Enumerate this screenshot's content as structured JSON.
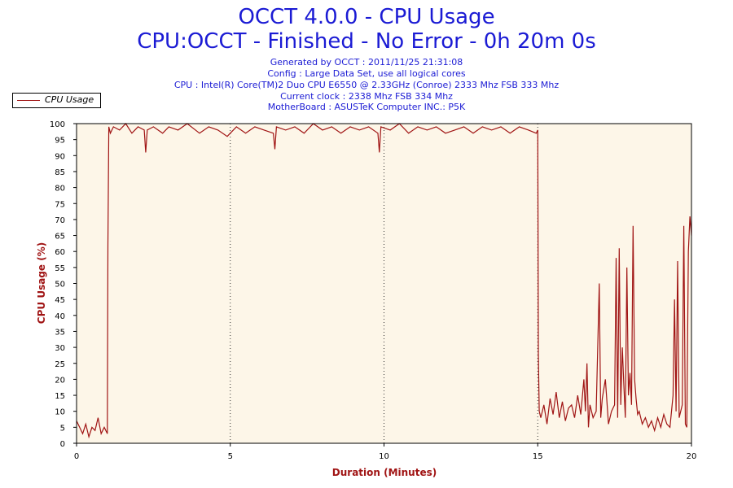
{
  "header": {
    "title_line1": "OCCT 4.0.0 - CPU Usage",
    "title_line2": "CPU:OCCT - Finished - No Error - 0h 20m 0s",
    "info": [
      "Generated by OCCT : 2011/11/25 21:31:08",
      "Config : Large Data Set, use all logical cores",
      "CPU : Intel(R) Core(TM)2 Duo CPU E6550 @ 2.33GHz (Conroe) 2333 Mhz FSB 333 Mhz",
      "Current clock : 2338 Mhz FSB 334 Mhz",
      "MotherBoard : ASUSTeK Computer INC.: P5K"
    ]
  },
  "legend": {
    "label": "CPU Usage"
  },
  "colors": {
    "title": "#1b1bd4",
    "series": "#a01414",
    "plot_bg": "#fdf6e8",
    "axis_label": "#a01414"
  },
  "chart_data": {
    "type": "line",
    "xlabel": "Duration (Minutes)",
    "ylabel": "CPU Usage (%)",
    "xlim": [
      0,
      20
    ],
    "ylim": [
      0,
      100
    ],
    "xticks": [
      0,
      5,
      10,
      15,
      20
    ],
    "yticks": [
      0,
      5,
      10,
      15,
      20,
      25,
      30,
      35,
      40,
      45,
      50,
      55,
      60,
      65,
      70,
      75,
      80,
      85,
      90,
      95,
      100
    ],
    "vgrid": [
      5,
      10,
      15
    ],
    "series": [
      {
        "name": "CPU Usage",
        "x": [
          0,
          0.1,
          0.2,
          0.3,
          0.4,
          0.5,
          0.6,
          0.7,
          0.8,
          0.9,
          1.0,
          1.02,
          1.05,
          1.1,
          1.2,
          1.4,
          1.6,
          1.8,
          2.0,
          2.2,
          2.25,
          2.3,
          2.5,
          2.8,
          3.0,
          3.3,
          3.6,
          4.0,
          4.3,
          4.6,
          4.9,
          5.2,
          5.5,
          5.8,
          6.1,
          6.4,
          6.45,
          6.5,
          6.8,
          7.1,
          7.4,
          7.7,
          8.0,
          8.3,
          8.6,
          8.9,
          9.2,
          9.5,
          9.8,
          9.85,
          9.9,
          10.2,
          10.5,
          10.8,
          11.1,
          11.4,
          11.7,
          12.0,
          12.3,
          12.6,
          12.9,
          13.2,
          13.5,
          13.8,
          14.1,
          14.4,
          14.7,
          14.95,
          15.0,
          15.02,
          15.05,
          15.1,
          15.2,
          15.3,
          15.4,
          15.5,
          15.6,
          15.7,
          15.8,
          15.9,
          16.0,
          16.1,
          16.2,
          16.3,
          16.4,
          16.5,
          16.55,
          16.6,
          16.65,
          16.7,
          16.8,
          16.9,
          17.0,
          17.05,
          17.1,
          17.2,
          17.3,
          17.4,
          17.5,
          17.55,
          17.6,
          17.65,
          17.7,
          17.75,
          17.8,
          17.85,
          17.9,
          17.95,
          18.0,
          18.05,
          18.1,
          18.15,
          18.2,
          18.25,
          18.3,
          18.4,
          18.5,
          18.6,
          18.7,
          18.8,
          18.9,
          19.0,
          19.1,
          19.2,
          19.3,
          19.4,
          19.45,
          19.5,
          19.55,
          19.6,
          19.7,
          19.75,
          19.8,
          19.85,
          19.9,
          19.95,
          20.0
        ],
        "values": [
          7,
          5,
          3,
          6,
          2,
          5,
          4,
          8,
          3,
          5,
          3,
          62,
          99,
          97,
          99,
          98,
          100,
          97,
          99,
          98,
          91,
          98,
          99,
          97,
          99,
          98,
          100,
          97,
          99,
          98,
          96,
          99,
          97,
          99,
          98,
          97,
          92,
          99,
          98,
          99,
          97,
          100,
          98,
          99,
          97,
          99,
          98,
          99,
          97,
          91,
          99,
          98,
          100,
          97,
          99,
          98,
          99,
          97,
          98,
          99,
          97,
          99,
          98,
          99,
          97,
          99,
          98,
          97,
          98,
          28,
          10,
          8,
          12,
          6,
          14,
          9,
          16,
          8,
          13,
          7,
          11,
          12,
          8,
          15,
          9,
          20,
          10,
          25,
          5,
          12,
          8,
          10,
          50,
          8,
          14,
          20,
          6,
          10,
          12,
          58,
          8,
          61,
          12,
          30,
          18,
          8,
          55,
          15,
          22,
          12,
          68,
          20,
          14,
          9,
          10,
          6,
          8,
          5,
          7,
          4,
          8,
          5,
          9,
          6,
          5,
          15,
          45,
          10,
          57,
          8,
          12,
          68,
          6,
          5,
          60,
          71,
          65
        ]
      }
    ]
  }
}
